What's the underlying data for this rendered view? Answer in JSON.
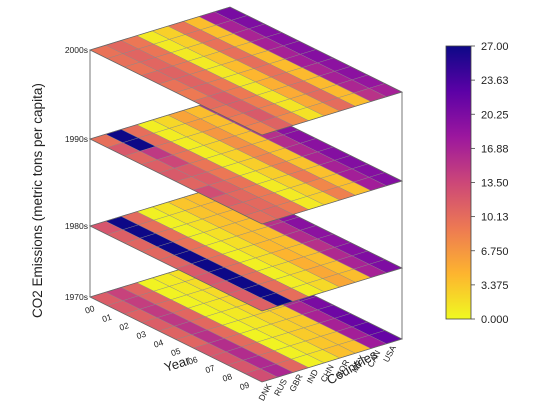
{
  "chart_data": {
    "type": "heatmap",
    "description_free": true,
    "layers": [
      "1970s",
      "1980s",
      "1990s",
      "2000s"
    ],
    "years": [
      "00",
      "01",
      "02",
      "03",
      "04",
      "05",
      "06",
      "07",
      "08",
      "09"
    ],
    "countries": [
      "DNK",
      "RUS",
      "GBR",
      "IND",
      "CHN",
      "KOR",
      "MEX",
      "CAN",
      "USA"
    ],
    "zlabel": "CO2 Emissions (metric tons per capita)",
    "xlabel": "Year",
    "ylabel": "Countries",
    "colorbar": {
      "min": 0,
      "max": 27,
      "ticks": [
        "27.00",
        "23.63",
        "20.25",
        "16.88",
        "13.50",
        "10.13",
        "6.750",
        "3.375",
        "0.000"
      ],
      "stops": [
        "#0d0887",
        "#5c01a6",
        "#9c179e",
        "#cc4778",
        "#ed7953",
        "#fdb42f",
        "#f0f921"
      ]
    },
    "values_by_layer_by_country": {
      "1970s": {
        "DNK": [
          11.5,
          11.8,
          11.2,
          11.4,
          11.0,
          10.8,
          12.0,
          12.2,
          12.1,
          12.9
        ],
        "RUS": [
          14.0,
          14.3,
          14.6,
          14.9,
          15.2,
          15.5,
          15.8,
          16.0,
          16.3,
          16.5
        ],
        "GBR": [
          10.8,
          10.9,
          10.6,
          10.7,
          10.5,
          10.2,
          10.3,
          10.4,
          10.5,
          10.6
        ],
        "IND": [
          0.4,
          0.4,
          0.4,
          0.4,
          0.4,
          0.4,
          0.4,
          0.4,
          0.5,
          0.5
        ],
        "CHN": [
          0.9,
          1.0,
          1.1,
          1.1,
          1.1,
          1.2,
          1.2,
          1.4,
          1.5,
          1.5
        ],
        "KOR": [
          1.7,
          1.9,
          2.0,
          2.2,
          2.3,
          2.5,
          2.7,
          3.0,
          3.3,
          3.7
        ],
        "MEX": [
          2.6,
          2.7,
          2.8,
          2.9,
          3.0,
          3.1,
          3.2,
          3.3,
          3.6,
          3.8
        ],
        "CAN": [
          15.5,
          15.9,
          16.4,
          16.8,
          16.9,
          16.6,
          16.9,
          17.1,
          17.3,
          17.7
        ],
        "USA": [
          21.1,
          21.3,
          21.9,
          22.5,
          21.5,
          20.4,
          21.2,
          21.6,
          22.1,
          21.8
        ]
      },
      "1980s": {
        "DNK": [
          12.2,
          11.3,
          10.8,
          10.6,
          10.9,
          11.9,
          12.2,
          11.9,
          11.5,
          11.2
        ],
        "RUS": [
          27.0,
          27.0,
          27.0,
          27.0,
          27.0,
          27.0,
          27.0,
          27.0,
          27.0,
          27.0
        ],
        "GBR": [
          10.3,
          9.9,
          9.8,
          9.7,
          9.6,
          9.9,
          9.9,
          9.9,
          10.0,
          10.0
        ],
        "IND": [
          0.5,
          0.5,
          0.5,
          0.6,
          0.6,
          0.6,
          0.6,
          0.6,
          0.7,
          0.7
        ],
        "CHN": [
          1.5,
          1.5,
          1.6,
          1.6,
          1.7,
          1.8,
          1.8,
          1.9,
          2.0,
          2.1
        ],
        "KOR": [
          3.4,
          3.5,
          3.6,
          3.7,
          3.9,
          4.2,
          4.5,
          4.9,
          5.4,
          5.5
        ],
        "MEX": [
          3.9,
          4.2,
          4.2,
          3.9,
          3.9,
          3.9,
          3.7,
          3.8,
          3.8,
          3.9
        ],
        "CAN": [
          17.6,
          16.9,
          15.9,
          15.4,
          15.9,
          16.0,
          15.6,
          16.3,
          16.9,
          17.1
        ],
        "USA": [
          20.8,
          20.0,
          19.2,
          19.0,
          19.4,
          19.1,
          19.0,
          19.5,
          20.0,
          20.1
        ]
      },
      "1990s": {
        "DNK": [
          9.9,
          11.9,
          10.8,
          11.3,
          11.8,
          10.8,
          13.0,
          11.3,
          10.6,
          10.1
        ],
        "RUS": [
          27.0,
          27.0,
          14.8,
          13.5,
          11.7,
          11.5,
          11.1,
          10.5,
          10.4,
          10.6
        ],
        "GBR": [
          10.0,
          10.1,
          9.8,
          9.5,
          9.4,
          9.2,
          9.5,
          9.1,
          9.2,
          9.0
        ],
        "IND": [
          0.7,
          0.8,
          0.8,
          0.8,
          0.8,
          0.9,
          0.9,
          0.9,
          0.9,
          1.0
        ],
        "CHN": [
          2.2,
          2.3,
          2.3,
          2.4,
          2.6,
          2.8,
          2.8,
          2.7,
          2.7,
          2.7
        ],
        "KOR": [
          5.8,
          6.3,
          6.7,
          7.2,
          7.7,
          8.1,
          8.6,
          9.0,
          7.9,
          8.5
        ],
        "MEX": [
          3.9,
          3.9,
          3.8,
          3.8,
          3.9,
          3.6,
          3.6,
          3.7,
          3.8,
          3.7
        ],
        "CAN": [
          16.2,
          15.9,
          16.1,
          15.7,
          16.0,
          16.4,
          16.8,
          17.1,
          17.3,
          17.4
        ],
        "USA": [
          19.3,
          19.0,
          19.1,
          19.3,
          19.4,
          19.3,
          19.7,
          19.8,
          19.6,
          19.7
        ]
      },
      "2000s": {
        "DNK": [
          9.6,
          9.8,
          9.6,
          10.6,
          9.6,
          9.0,
          10.3,
          9.5,
          9.0,
          8.5
        ],
        "RUS": [
          10.6,
          10.8,
          10.7,
          11.0,
          11.0,
          11.1,
          11.5,
          11.4,
          11.8,
          11.0
        ],
        "GBR": [
          9.2,
          9.4,
          9.1,
          9.2,
          9.1,
          9.0,
          9.0,
          8.7,
          8.4,
          7.6
        ],
        "IND": [
          1.0,
          1.0,
          1.0,
          1.0,
          1.1,
          1.1,
          1.2,
          1.3,
          1.4,
          1.5
        ],
        "CHN": [
          2.7,
          2.7,
          3.0,
          3.5,
          4.0,
          4.4,
          4.9,
          5.2,
          5.3,
          5.8
        ],
        "KOR": [
          9.5,
          9.6,
          9.7,
          9.8,
          9.9,
          9.6,
          9.7,
          10.1,
          10.3,
          10.2
        ],
        "MEX": [
          3.9,
          3.8,
          3.8,
          3.9,
          3.9,
          4.0,
          4.1,
          4.1,
          4.1,
          3.9
        ],
        "CAN": [
          17.4,
          17.0,
          16.8,
          17.2,
          17.1,
          17.4,
          16.8,
          17.2,
          16.6,
          15.4
        ],
        "USA": [
          20.5,
          20.1,
          19.6,
          19.6,
          19.7,
          19.6,
          19.1,
          19.2,
          18.5,
          17.2
        ]
      }
    }
  }
}
